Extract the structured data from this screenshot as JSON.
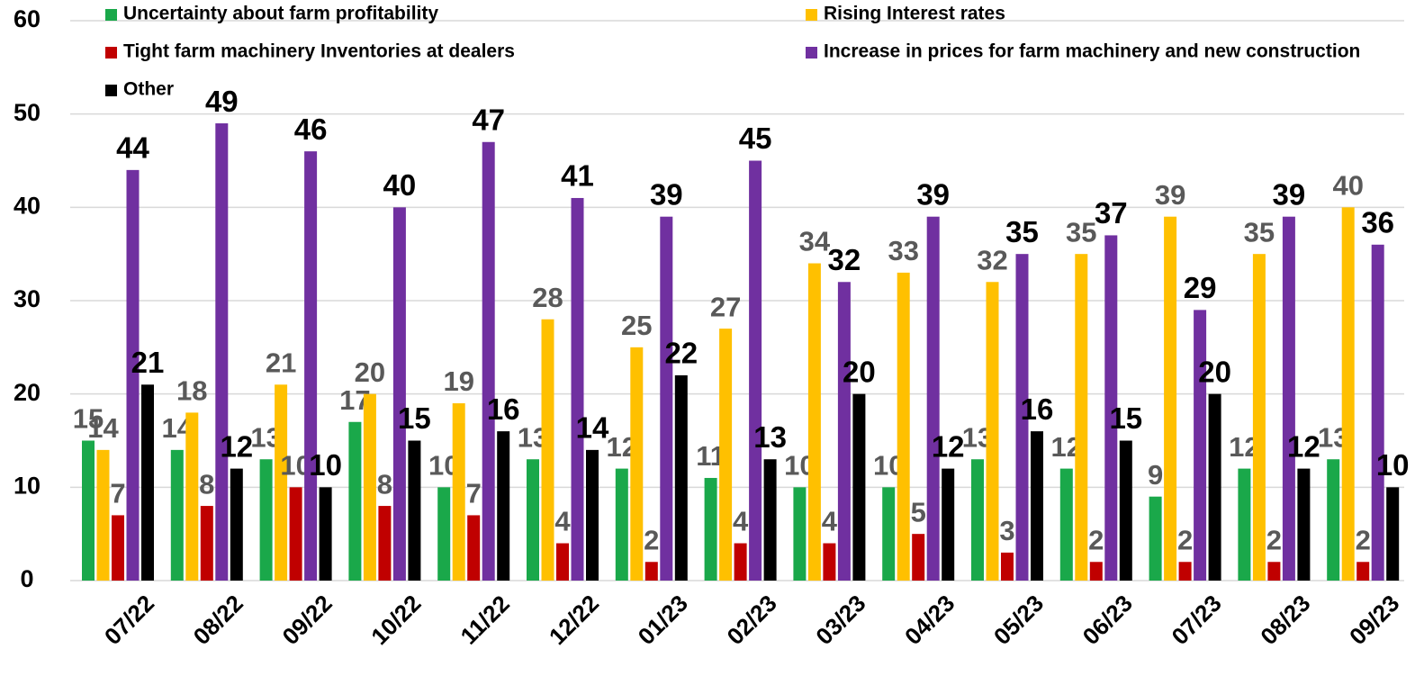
{
  "chart_data": {
    "type": "bar",
    "categories": [
      "07/22",
      "08/22",
      "09/22",
      "10/22",
      "11/22",
      "12/22",
      "01/23",
      "02/23",
      "03/23",
      "04/23",
      "05/23",
      "06/23",
      "07/23",
      "08/23",
      "09/23"
    ],
    "series": [
      {
        "name": "Uncertainty about farm profitability",
        "color": "#1aa84a",
        "values": [
          15,
          14,
          13,
          17,
          10,
          13,
          12,
          11,
          10,
          10,
          13,
          12,
          9,
          12,
          13
        ]
      },
      {
        "name": "Rising Interest rates",
        "color": "#ffc000",
        "values": [
          14,
          18,
          21,
          20,
          19,
          28,
          25,
          27,
          34,
          33,
          32,
          35,
          39,
          35,
          40
        ]
      },
      {
        "name": "Tight farm machinery Inventories at dealers",
        "color": "#c00000",
        "values": [
          7,
          8,
          10,
          8,
          7,
          4,
          2,
          4,
          4,
          5,
          3,
          2,
          2,
          2,
          2
        ]
      },
      {
        "name": "Increase in prices for farm machinery and new construction",
        "color": "#7030a0",
        "values": [
          44,
          49,
          46,
          40,
          47,
          41,
          39,
          45,
          32,
          39,
          35,
          37,
          29,
          39,
          36
        ]
      },
      {
        "name": "Other",
        "color": "#000000",
        "values": [
          21,
          12,
          10,
          15,
          16,
          14,
          22,
          13,
          20,
          12,
          16,
          15,
          20,
          12,
          10
        ]
      }
    ],
    "ylim": [
      0,
      60
    ],
    "yticks": [
      0,
      10,
      20,
      30,
      40,
      50,
      60
    ],
    "grid": true
  }
}
